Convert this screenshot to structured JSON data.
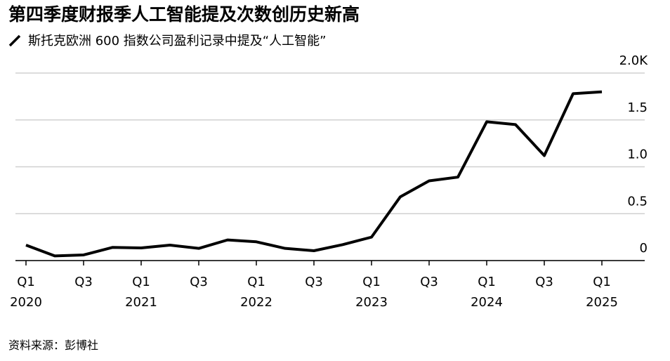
{
  "chart_data": {
    "type": "line",
    "title": "第四季度财报季人工智能提及次数创历史新高",
    "subtitle": "斯托克欧洲 600 指数公司盈利记录中提及“人工智能”",
    "source": "资料来源：彭博社",
    "categories": [
      "Q1 2020",
      null,
      "Q3",
      null,
      "Q1 2021",
      null,
      "Q3",
      null,
      "Q1 2022",
      null,
      "Q3",
      null,
      "Q1 2023",
      null,
      "Q3",
      null,
      "Q1 2024",
      null,
      "Q3",
      null,
      "Q1 2025"
    ],
    "values": [
      0.165,
      0.05,
      0.06,
      0.14,
      0.135,
      0.165,
      0.13,
      0.22,
      0.2,
      0.13,
      0.105,
      0.17,
      0.25,
      0.68,
      0.85,
      0.89,
      1.48,
      1.45,
      1.12,
      1.78,
      1.8
    ],
    "color": "#000000",
    "ylim": [
      0,
      2
    ],
    "yticks": [
      0,
      0.5,
      {
        "value": 1,
        "label": "1.0"
      },
      {
        "value": 1.5,
        "label": "1.5"
      },
      {
        "value": 2,
        "label": "2.0K"
      }
    ],
    "grid": true
  }
}
